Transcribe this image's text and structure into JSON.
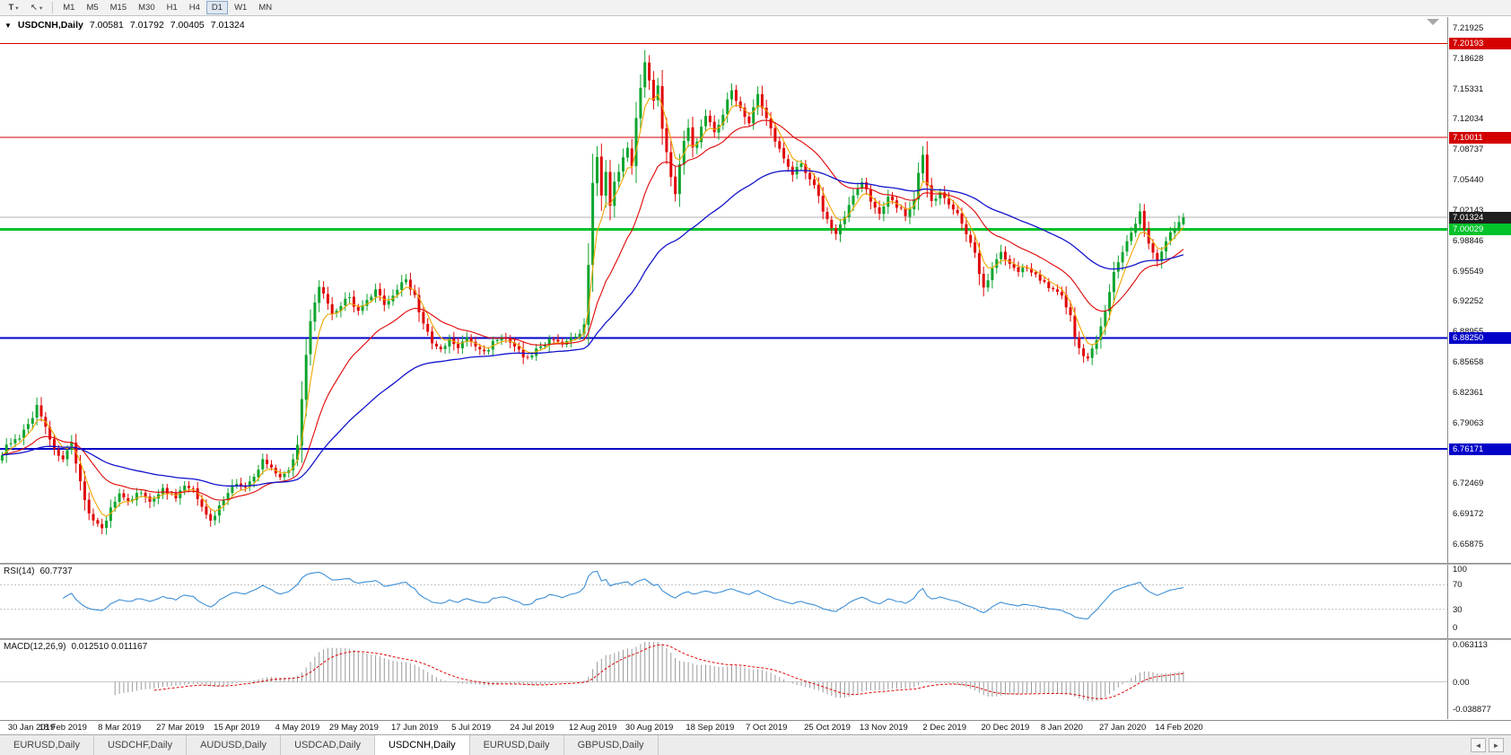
{
  "toolbar": {
    "tools_button": "T",
    "cursor_glyph": "↖",
    "caret": "▾",
    "timeframes": [
      "M1",
      "M5",
      "M15",
      "M30",
      "H1",
      "H4",
      "D1",
      "W1",
      "MN"
    ],
    "active_timeframe": "D1"
  },
  "chart_header": {
    "collapse_icon": "▼",
    "symbol": "USDCNH,Daily",
    "open": "7.00581",
    "high": "7.01792",
    "low": "7.00405",
    "close": "7.01324"
  },
  "chart": {
    "levels": [
      {
        "price": 7.20193,
        "label": "7.20193",
        "color": "#d40000",
        "width": 1
      },
      {
        "price": 7.10011,
        "label": "7.10011",
        "color": "#d40000",
        "width": 1
      },
      {
        "price": 7.00029,
        "label": "7.00029",
        "color": "#00c22a",
        "width": 3
      },
      {
        "price": 6.8825,
        "label": "6.88250",
        "color": "#0000c8",
        "width": 2
      },
      {
        "price": 6.76171,
        "label": "6.76171",
        "color": "#0000c8",
        "width": 2
      }
    ],
    "current_price": {
      "value": 7.01324,
      "label": "7.01324",
      "color": "#1f1f1f"
    }
  },
  "colors": {
    "up": "#0fa52f",
    "down": "#e00505",
    "ma_fast": "#f0a500",
    "ma_mid": "#e00505",
    "ma_slow": "#1414cc",
    "rsi": "#3d8fd6",
    "macd_hist": "#9a9a9a",
    "macd_signal": "#e00505"
  },
  "rsi_panel": {
    "label": "RSI(14)",
    "value": "60.7737",
    "axis": [
      "100",
      "70",
      "30",
      "0"
    ]
  },
  "macd_panel": {
    "label": "MACD(12,26,9)",
    "values": "0.012510 0.011167",
    "axis_top": "0.063113",
    "axis_zero": "0.00",
    "axis_bottom": "-0.038877"
  },
  "tabs": {
    "items": [
      {
        "label": "EURUSD,Daily",
        "active": false
      },
      {
        "label": "USDCHF,Daily",
        "active": false
      },
      {
        "label": "AUDUSD,Daily",
        "active": false
      },
      {
        "label": "USDCAD,Daily",
        "active": false
      },
      {
        "label": "USDCNH,Daily",
        "active": true
      },
      {
        "label": "EURUSD,Daily",
        "active": false
      },
      {
        "label": "GBPUSD,Daily",
        "active": false
      }
    ],
    "scroll_left": "◄",
    "scroll_right": "►"
  },
  "chart_data": {
    "type": "candlestick",
    "symbol": "USDCNH",
    "timeframe": "Daily",
    "current_ohlc": {
      "open": 7.00581,
      "high": 7.01792,
      "low": 7.00405,
      "close": 7.01324
    },
    "n_candles": 273,
    "price_axis_ticks": [
      "7.21925",
      "7.18628",
      "7.15331",
      "7.12034",
      "7.08737",
      "7.05440",
      "7.02143",
      "6.98846",
      "6.95549",
      "6.92252",
      "6.88955",
      "6.85658",
      "6.82361",
      "6.79063",
      "6.75766",
      "6.72469",
      "6.69172",
      "6.65875"
    ],
    "time_axis_labels": [
      {
        "i": 0,
        "label": "30 Jan 2019"
      },
      {
        "i": 14,
        "label": "18 Feb 2019"
      },
      {
        "i": 27,
        "label": "8 Mar 2019"
      },
      {
        "i": 41,
        "label": "27 Mar 2019"
      },
      {
        "i": 54,
        "label": "15 Apr 2019"
      },
      {
        "i": 68,
        "label": "4 May 2019"
      },
      {
        "i": 81,
        "label": "29 May 2019"
      },
      {
        "i": 95,
        "label": "17 Jun 2019"
      },
      {
        "i": 108,
        "label": "5 Jul 2019"
      },
      {
        "i": 122,
        "label": "24 Jul 2019"
      },
      {
        "i": 136,
        "label": "12 Aug 2019"
      },
      {
        "i": 149,
        "label": "30 Aug 2019"
      },
      {
        "i": 163,
        "label": "18 Sep 2019"
      },
      {
        "i": 176,
        "label": "7 Oct 2019"
      },
      {
        "i": 190,
        "label": "25 Oct 2019"
      },
      {
        "i": 203,
        "label": "13 Nov 2019"
      },
      {
        "i": 217,
        "label": "2 Dec 2019"
      },
      {
        "i": 231,
        "label": "20 Dec 2019"
      },
      {
        "i": 244,
        "label": "8 Jan 2020"
      },
      {
        "i": 258,
        "label": "27 Jan 2020"
      },
      {
        "i": 271,
        "label": "14 Feb 2020"
      }
    ],
    "horizontal_levels": [
      7.20193,
      7.10011,
      7.00029,
      6.8825,
      6.76171
    ],
    "close_anchors": [
      [
        0,
        6.758
      ],
      [
        2,
        6.77
      ],
      [
        4,
        6.772
      ],
      [
        6,
        6.788
      ],
      [
        8,
        6.808
      ],
      [
        10,
        6.788
      ],
      [
        12,
        6.76
      ],
      [
        14,
        6.752
      ],
      [
        16,
        6.766
      ],
      [
        17,
        6.742
      ],
      [
        19,
        6.705
      ],
      [
        21,
        6.685
      ],
      [
        23,
        6.675
      ],
      [
        25,
        6.698
      ],
      [
        27,
        6.712
      ],
      [
        29,
        6.703
      ],
      [
        31,
        6.716
      ],
      [
        34,
        6.706
      ],
      [
        37,
        6.718
      ],
      [
        40,
        6.708
      ],
      [
        42,
        6.722
      ],
      [
        44,
        6.716
      ],
      [
        46,
        6.702
      ],
      [
        48,
        6.682
      ],
      [
        50,
        6.7
      ],
      [
        52,
        6.716
      ],
      [
        54,
        6.724
      ],
      [
        56,
        6.72
      ],
      [
        58,
        6.73
      ],
      [
        60,
        6.75
      ],
      [
        62,
        6.742
      ],
      [
        64,
        6.732
      ],
      [
        66,
        6.738
      ],
      [
        68,
        6.77
      ],
      [
        69,
        6.815
      ],
      [
        70,
        6.862
      ],
      [
        71,
        6.898
      ],
      [
        72,
        6.92
      ],
      [
        73,
        6.94
      ],
      [
        74,
        6.928
      ],
      [
        76,
        6.906
      ],
      [
        78,
        6.918
      ],
      [
        80,
        6.928
      ],
      [
        82,
        6.91
      ],
      [
        84,
        6.922
      ],
      [
        86,
        6.933
      ],
      [
        88,
        6.92
      ],
      [
        90,
        6.928
      ],
      [
        92,
        6.942
      ],
      [
        93,
        6.946
      ],
      [
        95,
        6.928
      ],
      [
        97,
        6.898
      ],
      [
        99,
        6.876
      ],
      [
        101,
        6.869
      ],
      [
        103,
        6.88
      ],
      [
        105,
        6.872
      ],
      [
        107,
        6.882
      ],
      [
        109,
        6.874
      ],
      [
        111,
        6.866
      ],
      [
        113,
        6.878
      ],
      [
        115,
        6.884
      ],
      [
        117,
        6.876
      ],
      [
        119,
        6.868
      ],
      [
        121,
        6.859
      ],
      [
        123,
        6.87
      ],
      [
        125,
        6.877
      ],
      [
        127,
        6.882
      ],
      [
        129,
        6.877
      ],
      [
        131,
        6.88
      ],
      [
        133,
        6.886
      ],
      [
        134,
        6.892
      ],
      [
        135,
        6.962
      ],
      [
        136,
        7.048
      ],
      [
        137,
        7.078
      ],
      [
        138,
        7.04
      ],
      [
        139,
        7.062
      ],
      [
        140,
        7.028
      ],
      [
        141,
        7.05
      ],
      [
        142,
        7.062
      ],
      [
        143,
        7.076
      ],
      [
        144,
        7.092
      ],
      [
        145,
        7.066
      ],
      [
        146,
        7.118
      ],
      [
        147,
        7.156
      ],
      [
        148,
        7.184
      ],
      [
        149,
        7.164
      ],
      [
        150,
        7.14
      ],
      [
        151,
        7.154
      ],
      [
        152,
        7.112
      ],
      [
        153,
        7.086
      ],
      [
        154,
        7.06
      ],
      [
        155,
        7.042
      ],
      [
        156,
        7.068
      ],
      [
        157,
        7.098
      ],
      [
        158,
        7.112
      ],
      [
        159,
        7.088
      ],
      [
        160,
        7.098
      ],
      [
        161,
        7.112
      ],
      [
        162,
        7.124
      ],
      [
        164,
        7.106
      ],
      [
        166,
        7.128
      ],
      [
        168,
        7.15
      ],
      [
        170,
        7.134
      ],
      [
        172,
        7.116
      ],
      [
        174,
        7.146
      ],
      [
        176,
        7.12
      ],
      [
        178,
        7.096
      ],
      [
        180,
        7.08
      ],
      [
        182,
        7.062
      ],
      [
        184,
        7.072
      ],
      [
        186,
        7.056
      ],
      [
        188,
        7.036
      ],
      [
        190,
        7.01
      ],
      [
        192,
        6.996
      ],
      [
        194,
        7.016
      ],
      [
        196,
        7.036
      ],
      [
        198,
        7.052
      ],
      [
        200,
        7.03
      ],
      [
        202,
        7.02
      ],
      [
        204,
        7.036
      ],
      [
        206,
        7.026
      ],
      [
        208,
        7.016
      ],
      [
        210,
        7.03
      ],
      [
        211,
        7.06
      ],
      [
        212,
        7.078
      ],
      [
        213,
        7.046
      ],
      [
        214,
        7.03
      ],
      [
        216,
        7.04
      ],
      [
        218,
        7.03
      ],
      [
        220,
        7.016
      ],
      [
        222,
        6.996
      ],
      [
        224,
        6.976
      ],
      [
        226,
        6.936
      ],
      [
        228,
        6.96
      ],
      [
        230,
        6.976
      ],
      [
        232,
        6.964
      ],
      [
        234,
        6.954
      ],
      [
        236,
        6.96
      ],
      [
        238,
        6.95
      ],
      [
        240,
        6.944
      ],
      [
        242,
        6.934
      ],
      [
        244,
        6.93
      ],
      [
        246,
        6.904
      ],
      [
        248,
        6.87
      ],
      [
        250,
        6.858
      ],
      [
        252,
        6.882
      ],
      [
        254,
        6.912
      ],
      [
        256,
        6.952
      ],
      [
        258,
        6.976
      ],
      [
        260,
        6.996
      ],
      [
        262,
        7.016
      ],
      [
        264,
        6.986
      ],
      [
        266,
        6.964
      ],
      [
        268,
        6.986
      ],
      [
        270,
        7.004
      ],
      [
        272,
        7.013
      ]
    ],
    "moving_averages": [
      {
        "period": 5,
        "color_key": "ma_fast"
      },
      {
        "period": 20,
        "color_key": "ma_mid"
      },
      {
        "period": 55,
        "color_key": "ma_slow"
      }
    ],
    "rsi": {
      "period": 14,
      "current": 60.7737,
      "overbought": 70,
      "oversold": 30
    },
    "macd": {
      "fast": 12,
      "slow": 26,
      "signal": 9,
      "current_macd": 0.01251,
      "current_signal": 0.011167,
      "axis_max": 0.063113,
      "axis_min": -0.038877
    }
  }
}
